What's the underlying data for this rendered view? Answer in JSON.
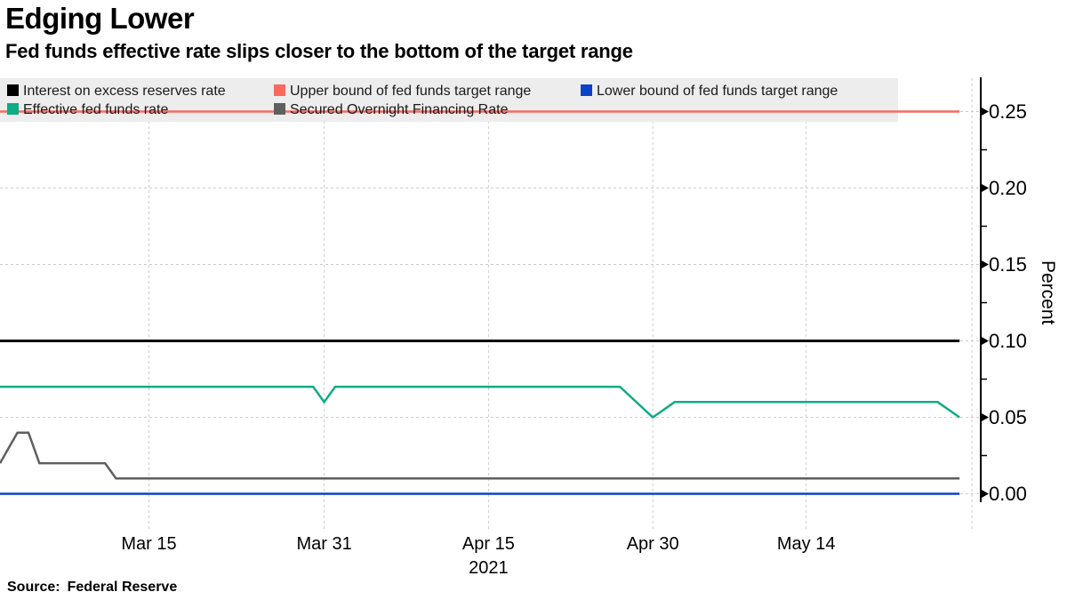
{
  "header": {
    "title": "Edging Lower",
    "subtitle": "Fed funds effective rate slips closer to the bottom of the target range"
  },
  "footer": {
    "source_label": "Source:",
    "source": "Federal Reserve"
  },
  "chart_data": {
    "type": "line",
    "title": "Edging Lower",
    "subtitle": "Fed funds effective rate slips closer to the bottom of the target range",
    "ylabel": "Percent",
    "ylabel_side": "right",
    "xlabel": "",
    "x_year_label": "2021",
    "x_range": [
      "Mar 1",
      "May 28"
    ],
    "ylim": [
      0,
      0.27
    ],
    "grid": "dashed",
    "legend_position": "top",
    "yticks": [
      0.0,
      0.05,
      0.1,
      0.15,
      0.2,
      0.25
    ],
    "ytick_labels": [
      "0.00",
      "0.05",
      "0.10",
      "0.15",
      "0.20",
      "0.25"
    ],
    "minor_yticks": [
      0.025,
      0.075,
      0.125,
      0.175,
      0.225
    ],
    "xticks": [
      "Mar 15",
      "Mar 31",
      "Apr 15",
      "Apr 30",
      "May 14"
    ],
    "series": [
      {
        "name": "Interest on excess reserves rate",
        "color": "#000000",
        "points": [
          [
            "Mar 1",
            0.1
          ],
          [
            "May 28",
            0.1
          ]
        ]
      },
      {
        "name": "Upper bound of fed funds target range",
        "color": "#f8695f",
        "points": [
          [
            "Mar 1",
            0.25
          ],
          [
            "May 28",
            0.25
          ]
        ]
      },
      {
        "name": "Lower bound of fed funds target range",
        "color": "#0c41cc",
        "points": [
          [
            "Mar 1",
            0.0
          ],
          [
            "May 28",
            0.0
          ]
        ]
      },
      {
        "name": "Effective fed funds rate",
        "color": "#10ab87",
        "points": [
          [
            "Mar 1",
            0.07
          ],
          [
            "Mar 30",
            0.07
          ],
          [
            "Mar 31",
            0.06
          ],
          [
            "Apr 1",
            0.07
          ],
          [
            "Apr 27",
            0.07
          ],
          [
            "Apr 30",
            0.05
          ],
          [
            "May 2",
            0.06
          ],
          [
            "May 26",
            0.06
          ],
          [
            "May 28",
            0.05
          ]
        ]
      },
      {
        "name": "Secured Overnight Financing Rate",
        "color": "#5f5f5f",
        "points": [
          [
            "Mar 1",
            0.02
          ],
          [
            "Mar 3",
            0.04
          ],
          [
            "Mar 4",
            0.04
          ],
          [
            "Mar 5",
            0.02
          ],
          [
            "Mar 11",
            0.02
          ],
          [
            "Mar 12",
            0.01
          ],
          [
            "May 28",
            0.01
          ]
        ]
      }
    ]
  }
}
